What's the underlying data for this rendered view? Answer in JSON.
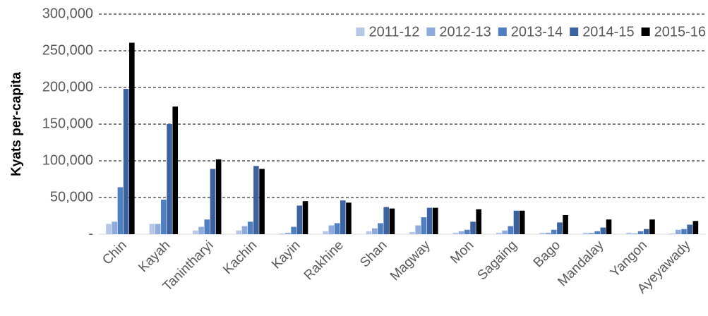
{
  "chart_data": {
    "type": "bar",
    "y_label": "Kyats per-capita",
    "categories": [
      "Chin",
      "Kayah",
      "Tanintharyi",
      "Kachin",
      "Kayin",
      "Rakhine",
      "Shan",
      "Magway",
      "Mon",
      "Sagaing",
      "Bago",
      "Mandalay",
      "Yangon",
      "Ayeyawady"
    ],
    "series": [
      {
        "name": "2011-12",
        "color": "#b4c7e7",
        "values": [
          14000,
          14000,
          5000,
          5000,
          1000,
          4000,
          4000,
          3000,
          2000,
          2000,
          2000,
          2000,
          2000,
          1000
        ]
      },
      {
        "name": "2012-13",
        "color": "#8faadc",
        "values": [
          17000,
          14000,
          10000,
          11000,
          2000,
          12000,
          8000,
          12000,
          4000,
          5000,
          2000,
          2000,
          1000,
          6000
        ]
      },
      {
        "name": "2013-14",
        "color": "#4f7fc0",
        "values": [
          64000,
          47000,
          20000,
          17000,
          10000,
          15000,
          15000,
          23000,
          6000,
          11000,
          6000,
          4000,
          4000,
          7000
        ]
      },
      {
        "name": "2014-15",
        "color": "#3c63a0",
        "values": [
          198000,
          150000,
          89000,
          93000,
          39000,
          46000,
          37000,
          36000,
          17000,
          32000,
          16000,
          9000,
          7000,
          13000
        ]
      },
      {
        "name": "2015-16",
        "color": "#000000",
        "values": [
          261000,
          174000,
          102000,
          89000,
          45000,
          43000,
          35000,
          36000,
          34000,
          32000,
          26000,
          20000,
          20000,
          18000
        ]
      }
    ],
    "ylim": [
      0,
      300000
    ],
    "yticks": [
      {
        "value": 0,
        "label": "-"
      },
      {
        "value": 50000,
        "label": "50,000"
      },
      {
        "value": 100000,
        "label": "100,000"
      },
      {
        "value": 150000,
        "label": "150,000"
      },
      {
        "value": 200000,
        "label": "200,000"
      },
      {
        "value": 250000,
        "label": "250,000"
      },
      {
        "value": 300000,
        "label": "300,000"
      }
    ],
    "grid": true,
    "legend": "top-right"
  }
}
